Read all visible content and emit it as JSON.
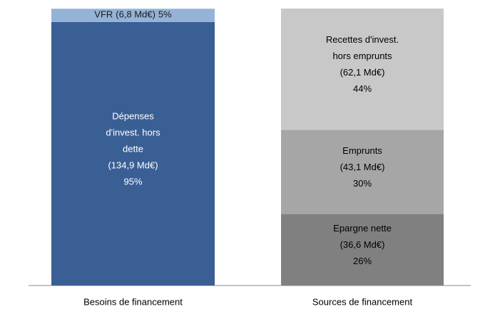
{
  "chart_data": {
    "type": "stacked_bar",
    "categories": [
      "Besoins de financement",
      "Sources de financement"
    ],
    "ylim": [
      0,
      141.8
    ],
    "series": [
      {
        "name": [
          "Dépenses",
          "d'invest. hors",
          "dette"
        ],
        "color": "#3a5f95",
        "label_color": "#ffffff",
        "values": [
          134.9,
          null
        ],
        "value_labels": [
          "(134,9 Md€)",
          null
        ],
        "shares": [
          95,
          null
        ],
        "share_labels": [
          "95%",
          null
        ]
      },
      {
        "name": [
          "VFR"
        ],
        "color": "#95b3d7",
        "label_color": "#1a1a1a",
        "inline": true,
        "values": [
          6.8,
          null
        ],
        "value_labels": [
          "(6,8 Md€)",
          null
        ],
        "shares": [
          5,
          null
        ],
        "share_labels": [
          "5%",
          null
        ]
      },
      {
        "name": [
          "Epargne nette"
        ],
        "color": "#808080",
        "label_color": "#000000",
        "values": [
          null,
          36.6
        ],
        "value_labels": [
          null,
          "(36,6 Md€)"
        ],
        "shares": [
          null,
          26
        ],
        "share_labels": [
          null,
          "26%"
        ]
      },
      {
        "name": [
          "Emprunts"
        ],
        "color": "#a6a6a6",
        "label_color": "#000000",
        "values": [
          null,
          43.1
        ],
        "value_labels": [
          null,
          "(43,1 Md€)"
        ],
        "shares": [
          null,
          30
        ],
        "share_labels": [
          null,
          "30%"
        ]
      },
      {
        "name": [
          "Recettes d'invest.",
          "hors emprunts"
        ],
        "color": "#c8c8c8",
        "label_color": "#000000",
        "values": [
          null,
          62.1
        ],
        "value_labels": [
          null,
          "(62,1 Md€)"
        ],
        "shares": [
          null,
          44
        ],
        "share_labels": [
          null,
          "44%"
        ]
      }
    ]
  }
}
